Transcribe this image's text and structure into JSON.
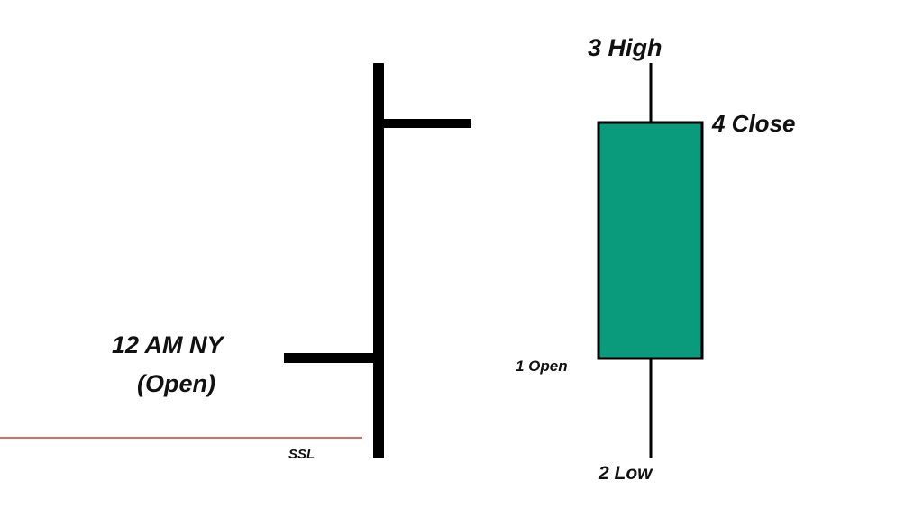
{
  "colors": {
    "candle_fill": "#0a9a7c",
    "ssl_line": "#e06a5e",
    "ink": "#000000"
  },
  "labels": {
    "high": "3 High",
    "close": "4 Close",
    "open": "1 Open",
    "low": "2 Low",
    "ny_open_line1": "12 AM NY",
    "ny_open_line2": "(Open)",
    "ssl": "SSL"
  }
}
